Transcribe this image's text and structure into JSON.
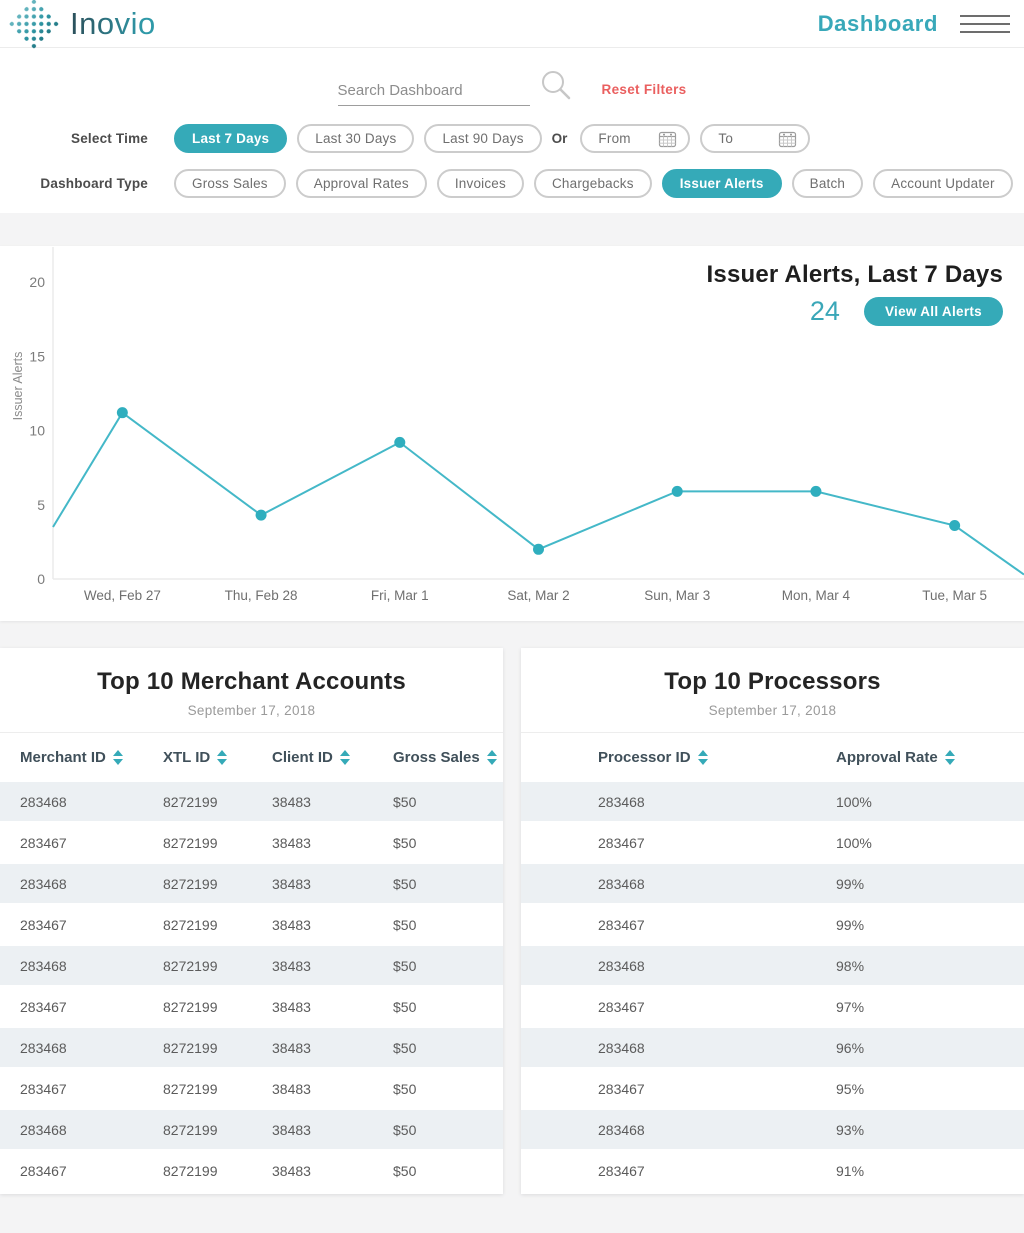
{
  "header": {
    "brand": "Inovio",
    "page_title": "Dashboard"
  },
  "filters": {
    "search_placeholder": "Search Dashboard",
    "reset_label": "Reset Filters",
    "time_label": "Select Time",
    "time_options": [
      {
        "label": "Last 7 Days",
        "active": true
      },
      {
        "label": "Last 30 Days",
        "active": false
      },
      {
        "label": "Last 90 Days",
        "active": false
      }
    ],
    "or_label": "Or",
    "from_label": "From",
    "to_label": "To",
    "type_label": "Dashboard Type",
    "type_options": [
      {
        "label": "Gross Sales",
        "active": false
      },
      {
        "label": "Approval Rates",
        "active": false
      },
      {
        "label": "Invoices",
        "active": false
      },
      {
        "label": "Chargebacks",
        "active": false
      },
      {
        "label": "Issuer Alerts",
        "active": true
      },
      {
        "label": "Batch",
        "active": false
      },
      {
        "label": "Account Updater",
        "active": false
      }
    ]
  },
  "chart": {
    "title": "Issuer Alerts, Last 7 Days",
    "total": "24",
    "button": "View All Alerts"
  },
  "chart_data": {
    "type": "line",
    "title": "Issuer Alerts, Last 7 Days",
    "ylabel": "Issuer Alerts",
    "xlabel": "",
    "categories": [
      "Wed, Feb 27",
      "Thu, Feb 28",
      "Fri, Mar 1",
      "Sat, Mar 2",
      "Sun, Mar 3",
      "Mon, Mar 4",
      "Tue, Mar 5"
    ],
    "values": [
      11.2,
      4.3,
      9.2,
      2.0,
      5.9,
      5.9,
      3.6
    ],
    "edge_start_value": 3.5,
    "edge_end_value": 0.3,
    "ylim": [
      0,
      20
    ],
    "yticks": [
      0,
      5,
      10,
      15,
      20
    ],
    "grid": false,
    "legend": false,
    "line_color": "#44B8C8",
    "point_color": "#2FAEBE"
  },
  "tables": {
    "merchant": {
      "title": "Top 10 Merchant Accounts",
      "date": "September 17, 2018",
      "columns": [
        "Merchant ID",
        "XTL ID",
        "Client ID",
        "Gross Sales"
      ],
      "rows": [
        [
          "283468",
          "8272199",
          "38483",
          "$50"
        ],
        [
          "283467",
          "8272199",
          "38483",
          "$50"
        ],
        [
          "283468",
          "8272199",
          "38483",
          "$50"
        ],
        [
          "283467",
          "8272199",
          "38483",
          "$50"
        ],
        [
          "283468",
          "8272199",
          "38483",
          "$50"
        ],
        [
          "283467",
          "8272199",
          "38483",
          "$50"
        ],
        [
          "283468",
          "8272199",
          "38483",
          "$50"
        ],
        [
          "283467",
          "8272199",
          "38483",
          "$50"
        ],
        [
          "283468",
          "8272199",
          "38483",
          "$50"
        ],
        [
          "283467",
          "8272199",
          "38483",
          "$50"
        ]
      ]
    },
    "processors": {
      "title": "Top 10 Processors",
      "date": "September 17, 2018",
      "columns": [
        "Processor ID",
        "Approval Rate"
      ],
      "rows": [
        [
          "283468",
          "100%"
        ],
        [
          "283467",
          "100%"
        ],
        [
          "283468",
          "99%"
        ],
        [
          "283467",
          "99%"
        ],
        [
          "283468",
          "98%"
        ],
        [
          "283467",
          "97%"
        ],
        [
          "283468",
          "96%"
        ],
        [
          "283467",
          "95%"
        ],
        [
          "283468",
          "93%"
        ],
        [
          "283467",
          "91%"
        ]
      ]
    }
  },
  "colors": {
    "accent": "#35AAB8",
    "accent_text": "#3AA7B8",
    "danger": "#EA5F5F",
    "row_stripe": "#ECF0F3"
  }
}
